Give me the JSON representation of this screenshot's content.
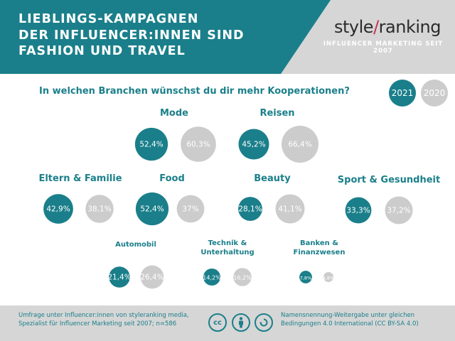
{
  "header": {
    "title": "LIEBLINGS-KAMPAGNEN\nDER INFLUENCER:INNEN SIND\nFASHION UND TRAVEL",
    "brand_left": "style",
    "brand_slash": "/",
    "brand_right": "ranking",
    "tagline": "INFLUENCER MARKETING SEIT 2007"
  },
  "question": "In welchen Branchen wünschst du dir mehr Kooperationen?",
  "legend": {
    "series_2021": "2021",
    "series_2020": "2020"
  },
  "colors": {
    "teal": "#1a7f8a",
    "gray": "#cccccc",
    "accent": "#c9304a"
  },
  "icons": [
    "cc-icon",
    "by-person-icon",
    "sa-icon"
  ],
  "footer": {
    "left": "Umfrage unter Influencer:innen von styleranking media, Spezialist für Influencer Marketing seit 2007; n=586",
    "right": "Namensnennung-Weitergabe unter gleichen Bedingungen 4.0 International (CC BY-SA 4.0)",
    "cc_label": "cc"
  },
  "chart_data": {
    "type": "bubble",
    "categories": [
      "Mode",
      "Reisen",
      "Eltern & Familie",
      "Food",
      "Beauty",
      "Sport & Gesundheit",
      "Automobil",
      "Technik & Unterhaltung",
      "Banken & Finanzwesen"
    ],
    "series": [
      {
        "name": "2021",
        "values": [
          52.4,
          45.2,
          42.9,
          52.4,
          28.1,
          33.3,
          21.4,
          14.2,
          7.8
        ],
        "labels": [
          "52,4%",
          "45,2%",
          "42,9%",
          "52,4%",
          "28,1%",
          "33,3%",
          "21,4%",
          "14,2%",
          "7,8%"
        ]
      },
      {
        "name": "2020",
        "values": [
          60.3,
          66.4,
          38.1,
          37,
          41.1,
          37.2,
          26.4,
          16.2,
          4.8
        ],
        "labels": [
          "60,3%",
          "66,4%",
          "38,1%",
          "37%",
          "41,1%",
          "37,2%",
          "26,4%",
          "16,2%",
          "4,8%"
        ]
      }
    ]
  }
}
